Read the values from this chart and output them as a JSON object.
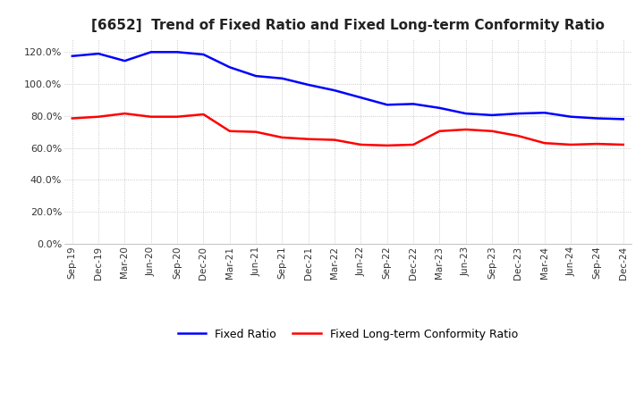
{
  "title": "[6652]  Trend of Fixed Ratio and Fixed Long-term Conformity Ratio",
  "x_labels": [
    "Sep-19",
    "Dec-19",
    "Mar-20",
    "Jun-20",
    "Sep-20",
    "Dec-20",
    "Mar-21",
    "Jun-21",
    "Sep-21",
    "Dec-21",
    "Mar-22",
    "Jun-22",
    "Sep-22",
    "Dec-22",
    "Mar-23",
    "Jun-23",
    "Sep-23",
    "Dec-23",
    "Mar-24",
    "Jun-24",
    "Sep-24",
    "Dec-24"
  ],
  "fixed_ratio": [
    117.5,
    119.0,
    114.5,
    120.0,
    120.0,
    118.5,
    110.5,
    105.0,
    103.5,
    99.5,
    96.0,
    91.5,
    87.0,
    87.5,
    85.0,
    81.5,
    80.5,
    81.5,
    82.0,
    79.5,
    78.5,
    78.0
  ],
  "fixed_lt_conformity": [
    78.5,
    79.5,
    81.5,
    79.5,
    79.5,
    81.0,
    70.5,
    70.0,
    66.5,
    65.5,
    65.0,
    62.0,
    61.5,
    62.0,
    70.5,
    71.5,
    70.5,
    67.5,
    63.0,
    62.0,
    62.5,
    62.0
  ],
  "fixed_ratio_color": "#0000FF",
  "fixed_lt_color": "#FF0000",
  "ylim": [
    0,
    128
  ],
  "yticks": [
    0,
    20,
    40,
    60,
    80,
    100,
    120
  ],
  "background_color": "#FFFFFF",
  "grid_color": "#BBBBBB",
  "legend_fixed_ratio": "Fixed Ratio",
  "legend_fixed_lt": "Fixed Long-term Conformity Ratio"
}
